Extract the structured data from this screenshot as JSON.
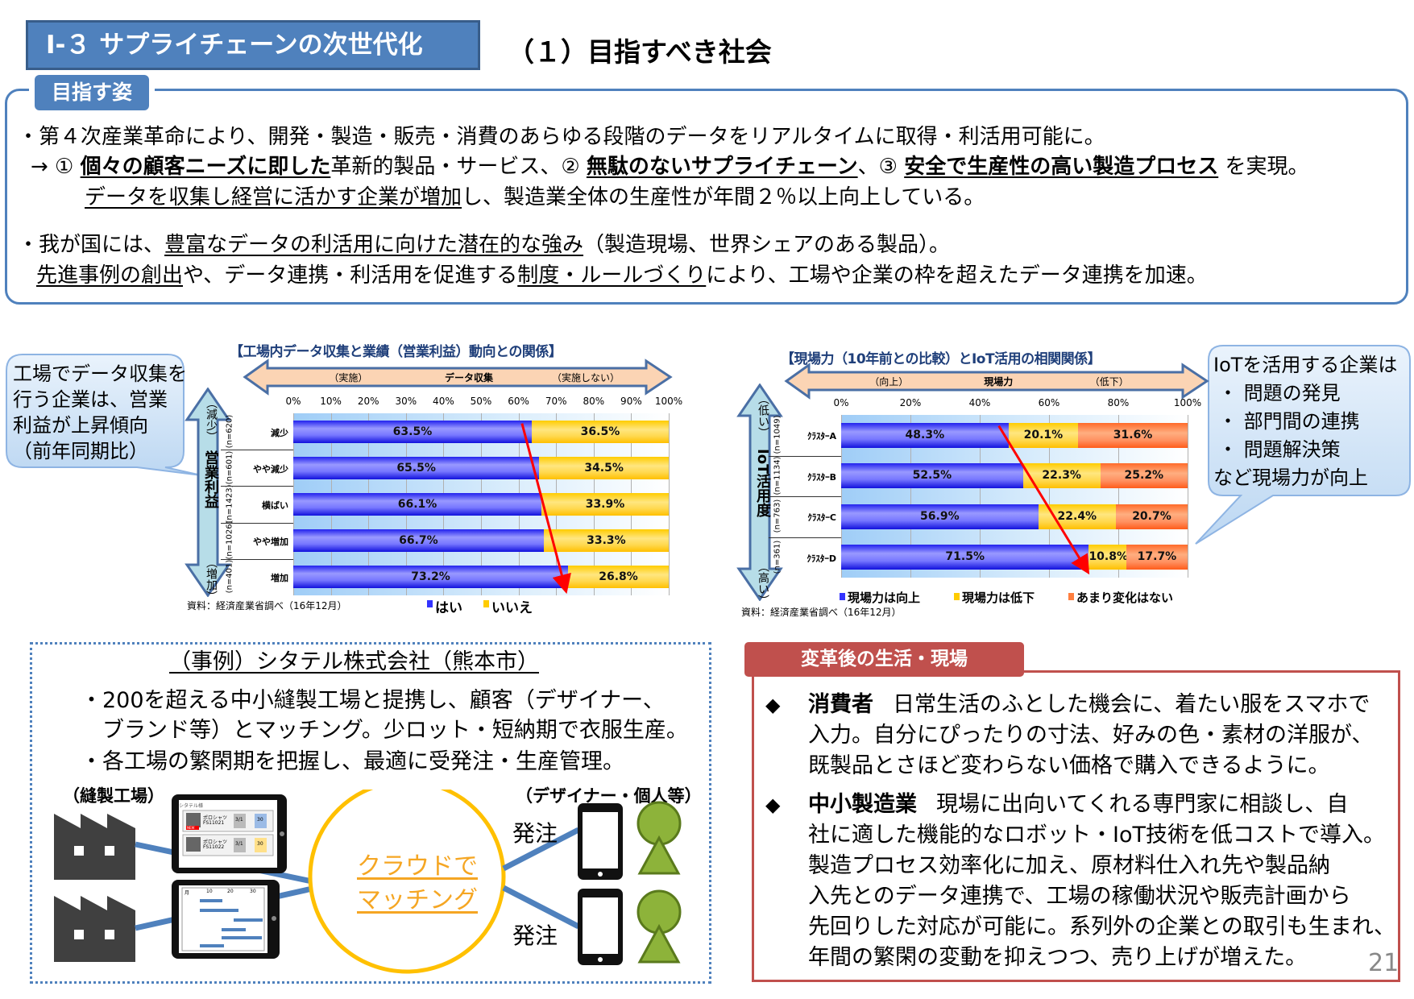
{
  "header": {
    "section_title": "Ⅰ-３ サプライチェーンの次世代化",
    "subtitle": "（１）目指すべき社会"
  },
  "goal": {
    "tab_label": "目指す姿",
    "lines": [
      [
        {
          "t": "・第４次産業革命により、開発・製造・販売・消費のあらゆる段階のデータをリアルタイムに取得・利活用可能に。"
        }
      ],
      [
        {
          "t": "→ ① "
        },
        {
          "t": "個々の顧客ニーズに即した",
          "u": true,
          "b": true
        },
        {
          "t": "革新的製品・サービス、② "
        },
        {
          "t": "無駄のないサプライチェーン",
          "u": true,
          "b": true
        },
        {
          "t": "、③ "
        },
        {
          "t": "安全で生産性の高い製造プロセス",
          "u": true,
          "b": true
        },
        {
          "t": " を実現。"
        }
      ],
      [
        {
          "t": "データを収集し経営に活かす企業が増加",
          "u": true
        },
        {
          "t": "し、製造業全体の生産性が年間２％以上向上している。"
        }
      ],
      [
        {
          "t": "・我が国には、"
        },
        {
          "t": "豊富なデータの利活用に向けた潜在的な強み",
          "u": true
        },
        {
          "t": "（製造現場、世界シェアのある製品）。"
        }
      ],
      [
        {
          "t": "先進事例の創出",
          "u": true
        },
        {
          "t": "や、データ連携・利活用を促進する"
        },
        {
          "t": "制度・ルールづくり",
          "u": true
        },
        {
          "t": "により、工場や企業の枠を超えたデータ連携を加速。"
        }
      ]
    ]
  },
  "left_callout": {
    "lines": [
      "工場でデータ収集を",
      "行う企業は、営業",
      "利益が上昇傾向",
      "（前年同期比）"
    ]
  },
  "right_callout": {
    "lines": [
      "IoTを活用する企業は",
      "・ 問題の発見",
      "・ 部門間の連携",
      "・ 問題解決策",
      "など現場力が向上"
    ]
  },
  "chart_data": [
    {
      "type": "bar",
      "stacked": true,
      "orientation": "horizontal",
      "title": "【工場内データ収集と業績（営業利益）動向との関係】",
      "top_arrow": {
        "left": "（実施）",
        "center": "データ収集",
        "right": "（実施しない）"
      },
      "side_arrow": {
        "top": "（減少）",
        "center": "営業利益",
        "bottom": "（増加）"
      },
      "xlim": [
        0,
        100
      ],
      "xticks": [
        "0%",
        "10%",
        "20%",
        "30%",
        "40%",
        "50%",
        "60%",
        "70%",
        "80%",
        "90%",
        "100%"
      ],
      "categories": [
        "減少",
        "やや減少",
        "横ばい",
        "やや増加",
        "増加"
      ],
      "n_labels": [
        "(n=620)",
        "(n=601)",
        "(n=1423)",
        "(n=1026)",
        "(n=401)"
      ],
      "series": [
        {
          "name": "はい",
          "values": [
            63.5,
            65.5,
            66.1,
            66.7,
            73.2
          ],
          "color": "#3333ff"
        },
        {
          "name": "いいえ",
          "values": [
            36.5,
            34.5,
            33.9,
            33.3,
            26.8
          ],
          "color": "#ffcc00"
        }
      ],
      "trend_arrow_color": "#ff0000",
      "source": "資料：経済産業省調べ（16年12月）",
      "legend": "bottom"
    },
    {
      "type": "bar",
      "stacked": true,
      "orientation": "horizontal",
      "title": "【現場力（10年前との比較）とIoT活用の相関関係】",
      "top_arrow": {
        "left": "（向上）",
        "center": "現場力",
        "right": "（低下）"
      },
      "side_arrow": {
        "top": "（低い）",
        "center": "IoT活用度",
        "bottom": "（高い）"
      },
      "xlim": [
        0,
        100
      ],
      "xticks": [
        "0%",
        "20%",
        "40%",
        "60%",
        "80%",
        "100%"
      ],
      "categories": [
        "ｸﾗｽﾀｰA",
        "ｸﾗｽﾀｰB",
        "ｸﾗｽﾀｰC",
        "ｸﾗｽﾀｰD"
      ],
      "n_labels": [
        "(n=1049)",
        "(n=1134)",
        "(n=763)",
        "(n=361)"
      ],
      "series": [
        {
          "name": "現場力は向上",
          "values": [
            48.3,
            52.5,
            56.9,
            71.5
          ],
          "color": "#3333ff"
        },
        {
          "name": "現場力は低下",
          "values": [
            20.1,
            22.3,
            22.4,
            10.8
          ],
          "color": "#ffcc00"
        },
        {
          "name": "あまり変化はない",
          "values": [
            31.6,
            25.2,
            20.7,
            17.7
          ],
          "color": "#ff7f40"
        }
      ],
      "trend_arrow_color": "#ff0000",
      "source": "資料：経済産業省調べ（16年12月）",
      "legend": "bottom"
    }
  ],
  "case": {
    "title": "（事例）シタテル株式会社（熊本市）",
    "lines": [
      "・200を超える中小縫製工場と提携し、顧客（デザイナー、",
      "　ブランド等）とマッチング。少ロット・短納期で衣服生産。",
      "・各工場の繁閑期を把握し、最適に受発注・生産管理。"
    ],
    "factory_label": "（縫製工場）",
    "designer_label": "（デザイナー・個人等）",
    "cloud_lines": [
      "クラウドで",
      "マッチング"
    ],
    "order_label": "発注",
    "tablet": {
      "header": "シタテル様",
      "item1": "ポロシャツ",
      "code1": "FS11021",
      "item2": "ポロシャツ",
      "code2": "FS11022",
      "date": "3/1",
      "qty": "30",
      "new": "NEW",
      "month": "月",
      "cols": [
        "10",
        "20",
        "30"
      ]
    },
    "accent": "#f5a623"
  },
  "change": {
    "tab_label": "変革後の生活・現場",
    "items": [
      {
        "head": "消費者",
        "lines": [
          "日常生活のふとした機会に、着たい服をスマホで",
          "入力。自分にぴったりの寸法、好みの色・素材の洋服が、",
          "既製品とさほど変わらない価格で購入できるように。"
        ]
      },
      {
        "head": "中小製造業",
        "lines": [
          "現場に出向いてくれる専門家に相談し、自",
          "社に適した機能的なロボット・IoT技術を低コストで導入。",
          "製造プロセス効率化に加え、原材料仕入れ先や製品納",
          "入先とのデータ連携で、工場の稼働状況や販売計画から",
          "先回りした対応が可能に。系列外の企業との取引も生まれ、",
          "年間の繁閑の変動を抑えつつ、売り上げが増えた。"
        ]
      }
    ],
    "bullet": "◆",
    "color": "#c0504d"
  },
  "page_number": "21"
}
